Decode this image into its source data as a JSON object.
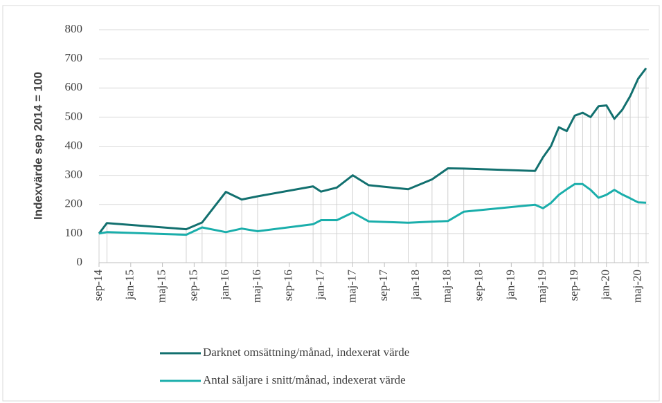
{
  "chart_data": {
    "type": "line",
    "y_label": "Indexvärde sep 2014 = 100",
    "x": [
      "2014-09",
      "2014-10",
      "2015-08",
      "2015-10",
      "2016-01",
      "2016-03",
      "2016-05",
      "2016-12",
      "2017-01",
      "2017-03",
      "2017-05",
      "2017-07",
      "2017-12",
      "2018-03",
      "2018-05",
      "2018-07",
      "2019-04",
      "2019-05",
      "2019-06",
      "2019-07",
      "2019-08",
      "2019-09",
      "2019-10",
      "2019-11",
      "2019-12",
      "2020-01",
      "2020-02",
      "2020-03",
      "2020-04",
      "2020-05",
      "2020-06"
    ],
    "series": [
      {
        "name": "Darknet omsättning/månad, indexerat värde",
        "color": "#12706f",
        "values": [
          100,
          136,
          115,
          138,
          243,
          217,
          228,
          262,
          244,
          258,
          300,
          266,
          252,
          286,
          324,
          323,
          315,
          362,
          400,
          465,
          452,
          505,
          515,
          500,
          537,
          540,
          494,
          525,
          572,
          632,
          668
        ]
      },
      {
        "name": "Antal säljare i snitt/månad, indexerat värde",
        "color": "#1aaeab",
        "values": [
          100,
          105,
          96,
          121,
          105,
          117,
          108,
          132,
          146,
          146,
          172,
          142,
          137,
          141,
          143,
          175,
          199,
          187,
          205,
          233,
          252,
          270,
          270,
          250,
          223,
          233,
          250,
          234,
          221,
          207,
          206
        ]
      }
    ],
    "xlim": [
      "2014-09",
      "2020-06"
    ],
    "xticks": [
      {
        "value": "2014-09",
        "label": "sep-14"
      },
      {
        "value": "2015-01",
        "label": "jan-15"
      },
      {
        "value": "2015-05",
        "label": "maj-15"
      },
      {
        "value": "2015-09",
        "label": "sep-15"
      },
      {
        "value": "2016-01",
        "label": "jan-16"
      },
      {
        "value": "2016-05",
        "label": "maj-16"
      },
      {
        "value": "2016-09",
        "label": "sep-16"
      },
      {
        "value": "2017-01",
        "label": "jan-17"
      },
      {
        "value": "2017-05",
        "label": "maj-17"
      },
      {
        "value": "2017-09",
        "label": "sep-17"
      },
      {
        "value": "2018-01",
        "label": "jan-18"
      },
      {
        "value": "2018-05",
        "label": "maj-18"
      },
      {
        "value": "2018-09",
        "label": "sep-18"
      },
      {
        "value": "2019-01",
        "label": "jan-19"
      },
      {
        "value": "2019-05",
        "label": "maj-19"
      },
      {
        "value": "2019-09",
        "label": "sep-19"
      },
      {
        "value": "2020-01",
        "label": "jan-20"
      },
      {
        "value": "2020-05",
        "label": "maj-20"
      }
    ],
    "ylim": [
      0,
      800
    ],
    "yticks": [
      0,
      100,
      200,
      300,
      400,
      500,
      600,
      700,
      800
    ],
    "grid": true,
    "drop_lines": true,
    "legend": "bottom"
  }
}
